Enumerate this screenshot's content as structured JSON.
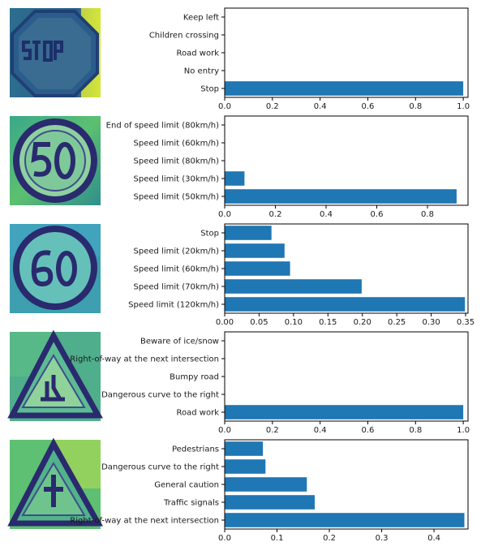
{
  "chart_data": [
    {
      "type": "bar",
      "orientation": "horizontal",
      "image": "stop-sign-thumbnail",
      "categories": [
        "Stop",
        "No entry",
        "Road work",
        "Children crossing",
        "Keep left"
      ],
      "values": [
        1.0,
        0.0,
        0.0,
        0.0,
        0.0
      ],
      "xlim": [
        0,
        1.02
      ],
      "xticks": [
        "0.0",
        "0.2",
        "0.4",
        "0.6",
        "0.8",
        "1.0"
      ],
      "bar_color": "#1f77b4",
      "grid": false
    },
    {
      "type": "bar",
      "orientation": "horizontal",
      "image": "speed-limit-50-thumbnail",
      "categories": [
        "Speed limit (50km/h)",
        "Speed limit (30km/h)",
        "Speed limit (80km/h)",
        "Speed limit (60km/h)",
        "End of speed limit (80km/h)"
      ],
      "values": [
        0.915,
        0.078,
        0.001,
        0.0005,
        0.0002
      ],
      "xlim": [
        0,
        0.96
      ],
      "xticks": [
        "0.0",
        "0.2",
        "0.4",
        "0.6",
        "0.8"
      ],
      "bar_color": "#1f77b4",
      "grid": false
    },
    {
      "type": "bar",
      "orientation": "horizontal",
      "image": "speed-limit-60-thumbnail",
      "categories": [
        "Speed limit (120km/h)",
        "Speed limit (70km/h)",
        "Speed limit (60km/h)",
        "Speed limit (20km/h)",
        "Stop"
      ],
      "values": [
        0.349,
        0.199,
        0.095,
        0.087,
        0.068
      ],
      "xlim": [
        0,
        0.3535
      ],
      "xticks": [
        "0.00",
        "0.05",
        "0.10",
        "0.15",
        "0.20",
        "0.25",
        "0.30",
        "0.35"
      ],
      "bar_color": "#1f77b4",
      "grid": false
    },
    {
      "type": "bar",
      "orientation": "horizontal",
      "image": "road-work-thumbnail",
      "categories": [
        "Road work",
        "Dangerous curve to the right",
        "Bumpy road",
        "Right-of-way at the next intersection",
        "Beware of ice/snow"
      ],
      "values": [
        1.0,
        0.0,
        0.0,
        0.0,
        0.0
      ],
      "xlim": [
        0,
        1.02
      ],
      "xticks": [
        "0.0",
        "0.2",
        "0.4",
        "0.6",
        "0.8",
        "1.0"
      ],
      "bar_color": "#1f77b4",
      "grid": false
    },
    {
      "type": "bar",
      "orientation": "horizontal",
      "image": "right-of-way-thumbnail",
      "categories": [
        "Right-of-way at the next intersection",
        "Traffic signals",
        "General caution",
        "Dangerous curve to the right",
        "Pedestrians"
      ],
      "values": [
        0.458,
        0.172,
        0.157,
        0.078,
        0.073
      ],
      "xlim": [
        0,
        0.465
      ],
      "xticks": [
        "0.0",
        "0.1",
        "0.2",
        "0.3",
        "0.4"
      ],
      "bar_color": "#1f77b4",
      "grid": false
    }
  ]
}
